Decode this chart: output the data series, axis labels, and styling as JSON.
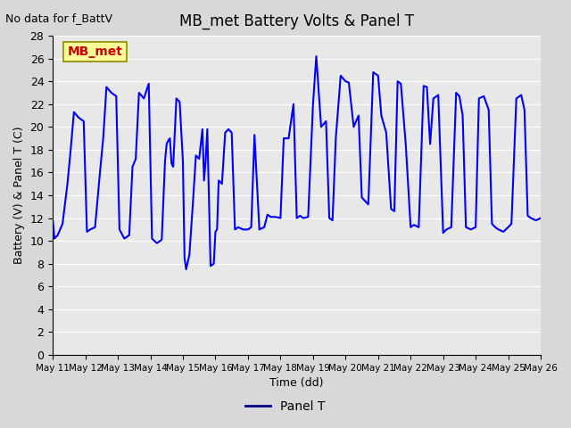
{
  "title": "MB_met Battery Volts & Panel T",
  "top_left_text": "No data for f_BattV",
  "ylabel": "Battery (V) & Panel T (C)",
  "xlabel": "Time (dd)",
  "ylim": [
    0,
    28
  ],
  "yticks": [
    0,
    2,
    4,
    6,
    8,
    10,
    12,
    14,
    16,
    18,
    20,
    22,
    24,
    26,
    28
  ],
  "line_color": "#0000ff",
  "line_width": 1.5,
  "legend_label": "Panel T",
  "legend_line_color": "#00008B",
  "station_label": "MB_met",
  "station_label_color": "#cc0000",
  "station_box_color": "#ffff99",
  "station_box_edge": "#8B8B00",
  "background_color": "#d8d8d8",
  "plot_bg_color": "#e8e8e8",
  "grid_color": "#ffffff",
  "x_start": 11.0,
  "x_end": 26.0,
  "x_ticks": [
    11,
    12,
    13,
    14,
    15,
    16,
    17,
    18,
    19,
    20,
    21,
    22,
    23,
    24,
    25,
    26
  ],
  "x_tick_labels": [
    "May 11",
    "May 12",
    "May 13",
    "May 14",
    "May 15",
    "May 16",
    "May 17",
    "May 18",
    "May 19",
    "May 20",
    "May 21",
    "May 22",
    "May 23",
    "May 24",
    "May 25",
    "May 26"
  ],
  "panel_t_x": [
    11.0,
    11.05,
    11.15,
    11.3,
    11.45,
    11.55,
    11.65,
    11.8,
    11.95,
    12.05,
    12.15,
    12.3,
    12.45,
    12.55,
    12.65,
    12.8,
    12.95,
    13.05,
    13.2,
    13.35,
    13.45,
    13.55,
    13.65,
    13.8,
    13.95,
    14.05,
    14.2,
    14.35,
    14.45,
    14.5,
    14.55,
    14.6,
    14.65,
    14.7,
    14.8,
    14.9,
    15.0,
    15.05,
    15.1,
    15.2,
    15.3,
    15.4,
    15.5,
    15.6,
    15.65,
    15.7,
    15.75,
    15.85,
    15.95,
    16.0,
    16.05,
    16.1,
    16.2,
    16.3,
    16.4,
    16.5,
    16.6,
    16.7,
    16.85,
    17.0,
    17.1,
    17.2,
    17.35,
    17.5,
    17.6,
    17.7,
    17.85,
    18.0,
    18.1,
    18.25,
    18.4,
    18.5,
    18.6,
    18.7,
    18.85,
    19.0,
    19.1,
    19.25,
    19.4,
    19.5,
    19.6,
    19.7,
    19.85,
    20.0,
    20.1,
    20.25,
    20.4,
    20.5,
    20.6,
    20.7,
    20.85,
    21.0,
    21.1,
    21.25,
    21.4,
    21.5,
    21.6,
    21.7,
    21.85,
    22.0,
    22.1,
    22.25,
    22.4,
    22.5,
    22.6,
    22.7,
    22.85,
    23.0,
    23.1,
    23.25,
    23.4,
    23.5,
    23.6,
    23.7,
    23.85,
    24.0,
    24.1,
    24.25,
    24.4,
    24.5,
    24.6,
    24.7,
    24.85,
    25.0,
    25.1,
    25.25,
    25.4,
    25.5,
    25.6,
    25.7,
    25.85,
    26.0
  ],
  "panel_t_y": [
    11.8,
    10.2,
    10.5,
    11.5,
    15.0,
    18.0,
    21.3,
    20.8,
    20.5,
    10.8,
    11.0,
    11.2,
    16.0,
    19.0,
    23.5,
    23.0,
    22.7,
    11.0,
    10.2,
    10.5,
    16.5,
    17.2,
    23.0,
    22.5,
    23.8,
    10.2,
    9.8,
    10.1,
    17.0,
    18.5,
    18.8,
    19.0,
    16.8,
    16.5,
    22.5,
    22.2,
    17.0,
    8.5,
    7.5,
    8.8,
    13.0,
    17.5,
    17.2,
    19.8,
    15.3,
    17.1,
    19.8,
    7.8,
    8.0,
    10.8,
    11.0,
    15.3,
    15.0,
    19.5,
    19.8,
    19.5,
    11.0,
    11.2,
    11.0,
    11.0,
    11.2,
    19.3,
    11.0,
    11.2,
    12.3,
    12.1,
    12.1,
    12.0,
    19.0,
    19.0,
    22.0,
    12.0,
    12.2,
    12.0,
    12.1,
    22.0,
    26.2,
    20.0,
    20.5,
    12.0,
    11.8,
    19.0,
    24.5,
    24.0,
    23.9,
    20.0,
    21.0,
    13.8,
    13.5,
    13.2,
    24.8,
    24.5,
    21.0,
    19.5,
    12.8,
    12.6,
    24.0,
    23.8,
    18.5,
    11.2,
    11.4,
    11.2,
    23.6,
    23.5,
    18.5,
    22.5,
    22.8,
    10.7,
    11.0,
    11.2,
    23.0,
    22.7,
    21.0,
    11.2,
    11.0,
    11.2,
    22.5,
    22.7,
    21.5,
    11.5,
    11.2,
    11.0,
    10.8,
    11.2,
    11.5,
    22.5,
    22.8,
    21.5,
    12.2,
    12.0,
    11.8,
    12.0
  ]
}
